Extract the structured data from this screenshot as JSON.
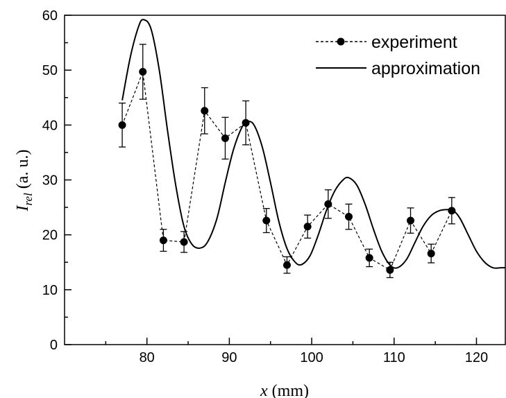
{
  "chart_data": {
    "type": "line",
    "xlabel": {
      "var": "x",
      "unit": " (mm)"
    },
    "ylabel": {
      "var": "I",
      "sub": "rel",
      "unit": " (a. u.)"
    },
    "xlim": [
      70,
      123.5
    ],
    "ylim": [
      0,
      60
    ],
    "x_ticks": [
      80,
      90,
      100,
      110,
      120
    ],
    "y_ticks": [
      0,
      10,
      20,
      30,
      40,
      50,
      60
    ],
    "legend_position": "top-right",
    "series": [
      {
        "name": "experiment",
        "style": "dashed-markers",
        "x": [
          77,
          79.5,
          82,
          84.5,
          87,
          89.5,
          92,
          94.5,
          97,
          99.5,
          102,
          104.5,
          107,
          109.5,
          112,
          114.5,
          117
        ],
        "y": [
          40,
          49.7,
          19,
          18.7,
          42.6,
          37.6,
          40.4,
          22.6,
          14.5,
          21.5,
          25.6,
          23.3,
          15.8,
          13.6,
          22.6,
          16.6,
          24.4
        ],
        "err": [
          4,
          5,
          2,
          1.9,
          4.2,
          3.8,
          4,
          2.2,
          1.5,
          2.1,
          2.6,
          2.3,
          1.6,
          1.4,
          2.3,
          1.7,
          2.4
        ]
      },
      {
        "name": "approximation",
        "style": "solid",
        "x": [
          77,
          78,
          79,
          79.6,
          80.5,
          81.5,
          82.5,
          83.5,
          84.5,
          85.5,
          86.5,
          87.4,
          88.5,
          89.5,
          90.5,
          91.5,
          92.2,
          93,
          94,
          95,
          96,
          97,
          98,
          98.8,
          99.8,
          100.8,
          101.8,
          102.8,
          103.8,
          104.5,
          105.5,
          106.5,
          107.5,
          108.5,
          109.5,
          110.4,
          111.5,
          112.5,
          113.5,
          114.5,
          115.5,
          116.5,
          117.2,
          118,
          119,
          120,
          121,
          122,
          123,
          123.5
        ],
        "y": [
          44.5,
          52.5,
          58,
          59.2,
          57.5,
          50,
          39,
          29,
          21.5,
          18.2,
          17.6,
          18.8,
          23,
          29.5,
          35.5,
          39.5,
          40.6,
          40,
          36,
          29.5,
          22.5,
          17.5,
          15,
          14.6,
          16.2,
          20,
          24.5,
          28,
          30,
          30.4,
          29,
          25.5,
          21,
          17,
          14.5,
          14,
          15.5,
          18.5,
          21.5,
          23.5,
          24.4,
          24.6,
          24.4,
          23,
          20,
          17,
          15,
          14,
          14,
          14
        ]
      }
    ]
  }
}
